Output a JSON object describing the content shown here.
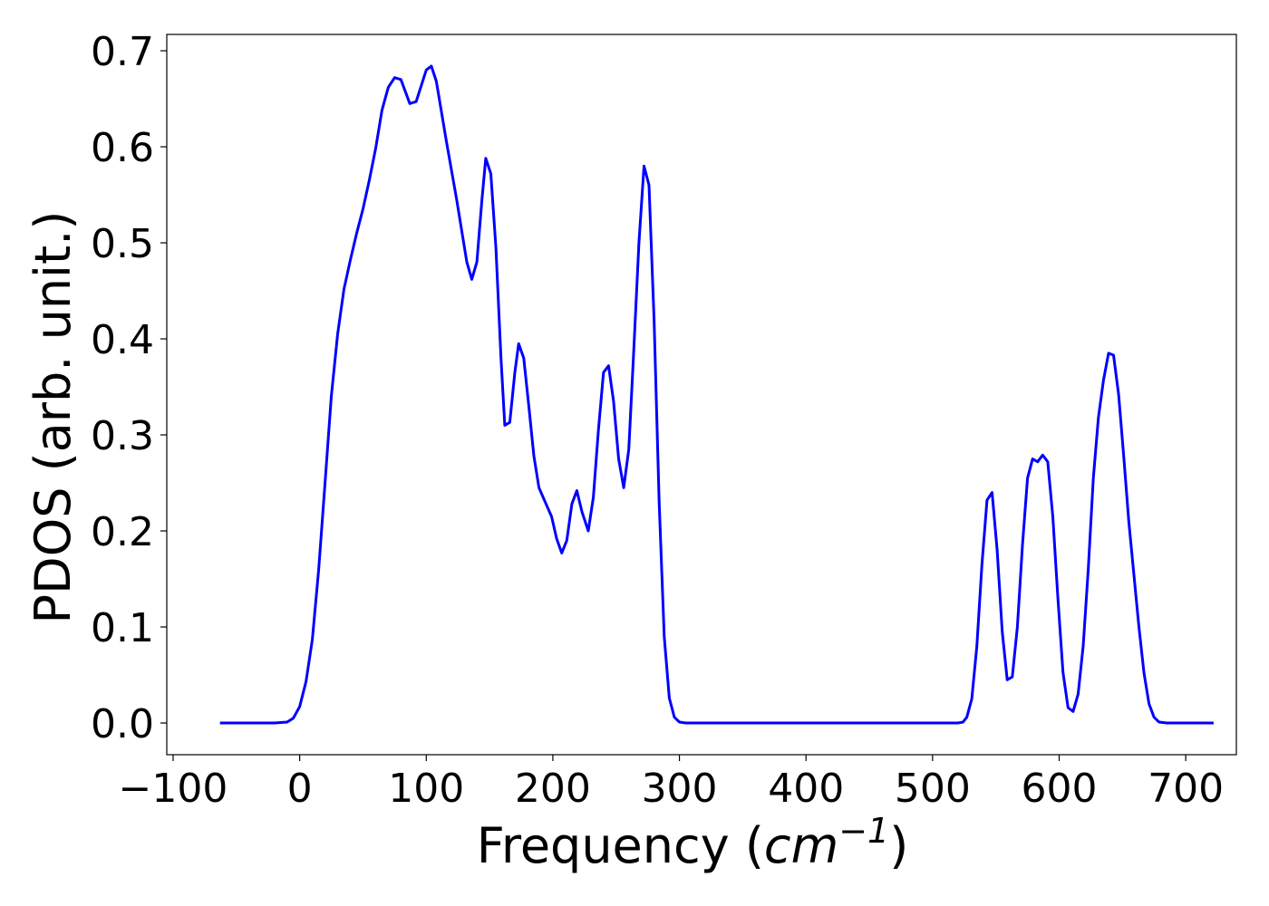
{
  "chart_data": {
    "type": "line",
    "xlabel": "Frequency (cm⁻¹)",
    "xlabel_parts": {
      "prefix": "Frequency (",
      "unit": "cm",
      "exponent": "−1",
      "suffix": ")"
    },
    "ylabel": "PDOS (arb. unit.)",
    "xlim": [
      -105,
      740
    ],
    "ylim": [
      -0.033,
      0.717
    ],
    "x_ticks": [
      -100,
      0,
      100,
      200,
      300,
      400,
      500,
      600,
      700
    ],
    "x_tick_labels": [
      "−100",
      "0",
      "100",
      "200",
      "300",
      "400",
      "500",
      "600",
      "700"
    ],
    "y_ticks": [
      0.0,
      0.1,
      0.2,
      0.3,
      0.4,
      0.5,
      0.6,
      0.7
    ],
    "y_tick_labels": [
      "0.0",
      "0.1",
      "0.2",
      "0.3",
      "0.4",
      "0.5",
      "0.6",
      "0.7"
    ],
    "grid": false,
    "legend": "none",
    "series": [
      {
        "color": "#0000ff",
        "points": [
          [
            -63,
            0.0
          ],
          [
            -40,
            0.0
          ],
          [
            -20,
            0.0
          ],
          [
            -10,
            0.001
          ],
          [
            -5,
            0.005
          ],
          [
            0,
            0.017
          ],
          [
            5,
            0.043
          ],
          [
            10,
            0.087
          ],
          [
            15,
            0.16
          ],
          [
            20,
            0.25
          ],
          [
            25,
            0.34
          ],
          [
            30,
            0.405
          ],
          [
            35,
            0.452
          ],
          [
            40,
            0.482
          ],
          [
            45,
            0.51
          ],
          [
            50,
            0.535
          ],
          [
            55,
            0.565
          ],
          [
            60,
            0.598
          ],
          [
            65,
            0.638
          ],
          [
            70,
            0.662
          ],
          [
            75,
            0.672
          ],
          [
            80,
            0.67
          ],
          [
            87,
            0.645
          ],
          [
            92,
            0.647
          ],
          [
            100,
            0.68
          ],
          [
            104,
            0.684
          ],
          [
            108,
            0.668
          ],
          [
            116,
            0.605
          ],
          [
            124,
            0.545
          ],
          [
            132,
            0.48
          ],
          [
            136,
            0.462
          ],
          [
            140,
            0.48
          ],
          [
            144,
            0.545
          ],
          [
            147,
            0.588
          ],
          [
            151,
            0.572
          ],
          [
            155,
            0.495
          ],
          [
            159,
            0.38
          ],
          [
            162,
            0.31
          ],
          [
            166,
            0.313
          ],
          [
            170,
            0.365
          ],
          [
            173,
            0.395
          ],
          [
            177,
            0.38
          ],
          [
            181,
            0.33
          ],
          [
            185,
            0.278
          ],
          [
            189,
            0.245
          ],
          [
            194,
            0.23
          ],
          [
            199,
            0.215
          ],
          [
            203,
            0.192
          ],
          [
            207,
            0.177
          ],
          [
            211,
            0.19
          ],
          [
            215,
            0.228
          ],
          [
            219,
            0.242
          ],
          [
            223,
            0.22
          ],
          [
            228,
            0.2
          ],
          [
            232,
            0.235
          ],
          [
            236,
            0.305
          ],
          [
            240,
            0.365
          ],
          [
            244,
            0.372
          ],
          [
            248,
            0.335
          ],
          [
            252,
            0.275
          ],
          [
            256,
            0.245
          ],
          [
            260,
            0.285
          ],
          [
            264,
            0.39
          ],
          [
            268,
            0.5
          ],
          [
            272,
            0.58
          ],
          [
            276,
            0.56
          ],
          [
            280,
            0.42
          ],
          [
            284,
            0.23
          ],
          [
            288,
            0.09
          ],
          [
            292,
            0.026
          ],
          [
            296,
            0.006
          ],
          [
            300,
            0.001
          ],
          [
            305,
            0.0
          ],
          [
            350,
            0.0
          ],
          [
            400,
            0.0
          ],
          [
            450,
            0.0
          ],
          [
            500,
            0.0
          ],
          [
            520,
            0.0
          ],
          [
            524,
            0.001
          ],
          [
            527,
            0.006
          ],
          [
            531,
            0.025
          ],
          [
            535,
            0.08
          ],
          [
            539,
            0.165
          ],
          [
            543,
            0.232
          ],
          [
            547,
            0.24
          ],
          [
            551,
            0.18
          ],
          [
            555,
            0.095
          ],
          [
            559,
            0.045
          ],
          [
            563,
            0.048
          ],
          [
            567,
            0.1
          ],
          [
            571,
            0.185
          ],
          [
            575,
            0.255
          ],
          [
            579,
            0.275
          ],
          [
            583,
            0.272
          ],
          [
            587,
            0.279
          ],
          [
            591,
            0.272
          ],
          [
            595,
            0.215
          ],
          [
            599,
            0.13
          ],
          [
            603,
            0.053
          ],
          [
            607,
            0.016
          ],
          [
            611,
            0.012
          ],
          [
            615,
            0.03
          ],
          [
            619,
            0.08
          ],
          [
            623,
            0.16
          ],
          [
            627,
            0.255
          ],
          [
            631,
            0.318
          ],
          [
            635,
            0.357
          ],
          [
            639,
            0.385
          ],
          [
            643,
            0.383
          ],
          [
            647,
            0.342
          ],
          [
            651,
            0.278
          ],
          [
            655,
            0.21
          ],
          [
            659,
            0.155
          ],
          [
            663,
            0.1
          ],
          [
            667,
            0.052
          ],
          [
            671,
            0.02
          ],
          [
            675,
            0.006
          ],
          [
            679,
            0.001
          ],
          [
            685,
            0.0
          ],
          [
            700,
            0.0
          ],
          [
            722,
            0.0
          ]
        ]
      }
    ]
  }
}
